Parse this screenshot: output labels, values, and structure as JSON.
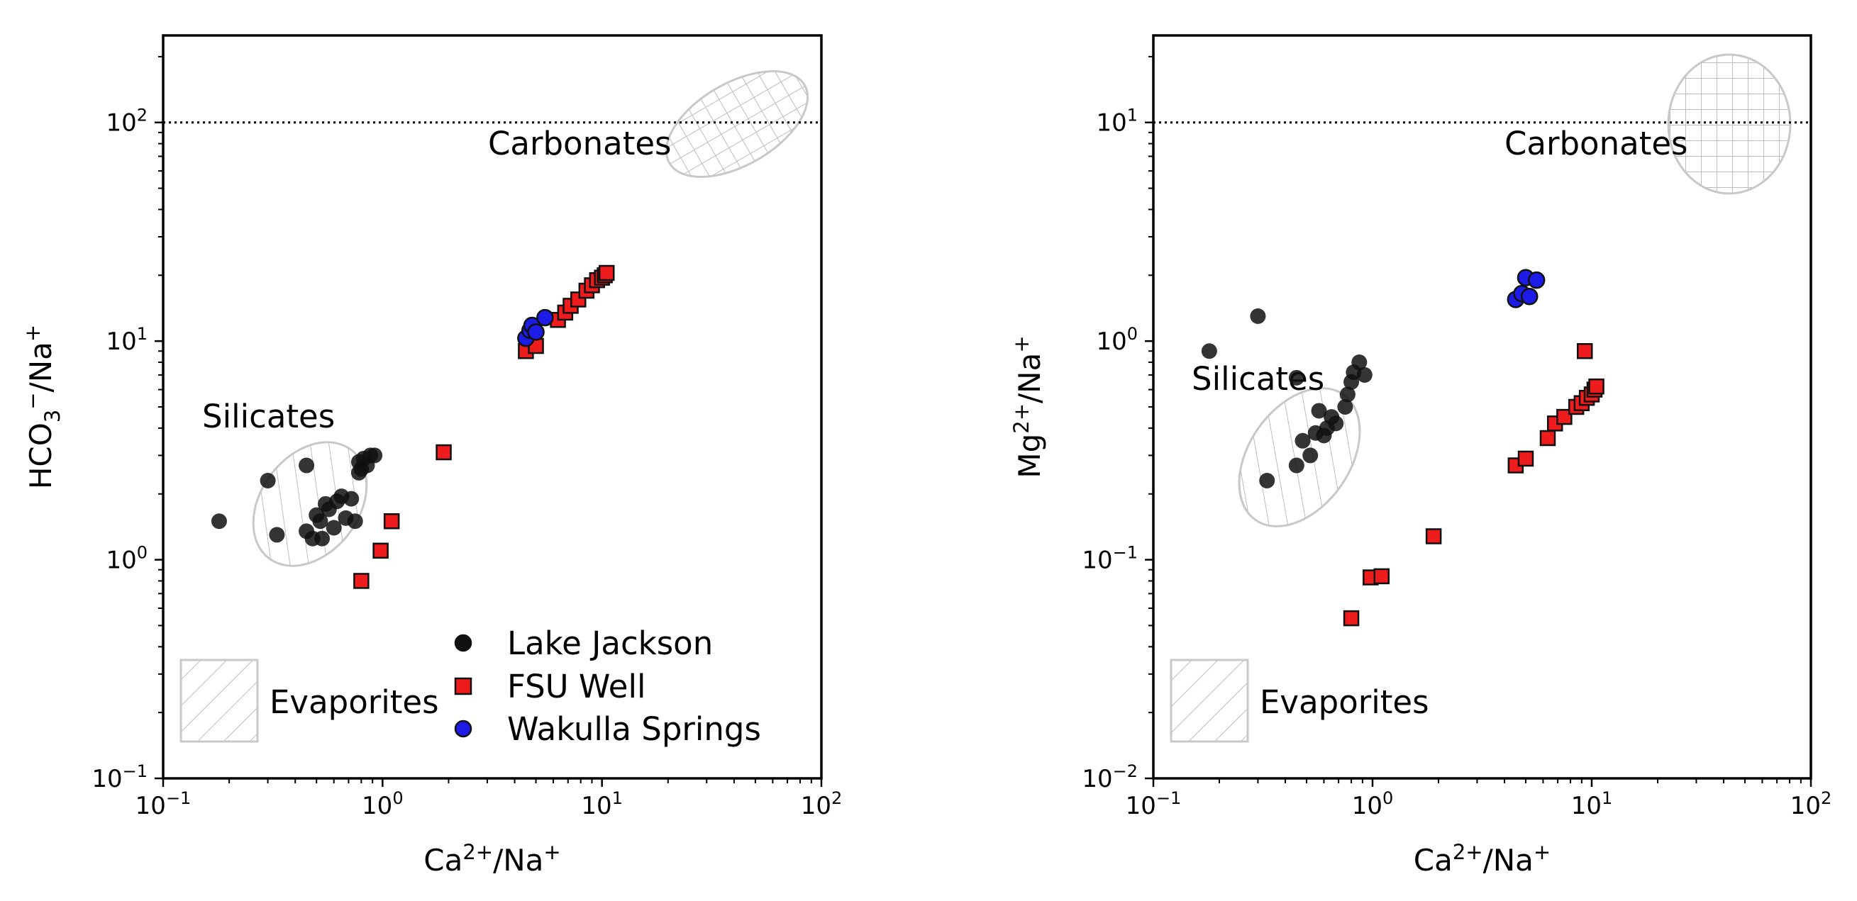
{
  "chart_data": [
    {
      "type": "scatter",
      "xscale": "log",
      "yscale": "log",
      "xlim": [
        0.1,
        100
      ],
      "ylim": [
        0.1,
        250
      ],
      "xticks": [
        0.1,
        1,
        10,
        100
      ],
      "yticks": [
        0.1,
        1,
        10,
        100
      ],
      "xlabel": "Ca2+/Na+",
      "ylabel": "HCO3-/Na+",
      "xlabel_parts": [
        "Ca",
        "2+",
        "/Na",
        "+"
      ],
      "ylabel_parts": [
        "HCO",
        "3",
        "−",
        "/Na",
        "+"
      ],
      "grid": false,
      "reference_line": {
        "y": 100,
        "style": "dotted"
      },
      "regions": [
        {
          "label": "Carbonates",
          "x": 40,
          "y": 80,
          "hatch": "grid"
        },
        {
          "label": "Silicates",
          "x": 0.5,
          "y": 1.6,
          "hatch": "diagonal"
        },
        {
          "label": "Evaporites",
          "x": 0.2,
          "y": 0.28,
          "hatch": "diagonal"
        }
      ],
      "legend": {
        "location": "lower right",
        "entries": [
          "Lake Jackson",
          "FSU Well",
          "Wakulla Springs"
        ]
      },
      "series": [
        {
          "name": "Lake Jackson",
          "marker": "circle",
          "color": "#111111",
          "points": [
            [
              0.18,
              1.5
            ],
            [
              0.3,
              2.3
            ],
            [
              0.33,
              1.3
            ],
            [
              0.45,
              1.35
            ],
            [
              0.45,
              2.7
            ],
            [
              0.48,
              1.25
            ],
            [
              0.5,
              1.6
            ],
            [
              0.52,
              1.5
            ],
            [
              0.53,
              1.25
            ],
            [
              0.55,
              1.8
            ],
            [
              0.57,
              1.7
            ],
            [
              0.6,
              1.4
            ],
            [
              0.62,
              1.85
            ],
            [
              0.65,
              1.95
            ],
            [
              0.68,
              1.55
            ],
            [
              0.72,
              1.9
            ],
            [
              0.75,
              1.5
            ],
            [
              0.78,
              2.8
            ],
            [
              0.8,
              2.6
            ],
            [
              0.85,
              2.7
            ],
            [
              0.88,
              3.0
            ],
            [
              0.92,
              3.0
            ],
            [
              0.78,
              2.5
            ],
            [
              0.82,
              2.9
            ]
          ]
        },
        {
          "name": "FSU Well",
          "marker": "square",
          "color": "#ee1c1c",
          "points": [
            [
              0.8,
              0.8
            ],
            [
              0.98,
              1.1
            ],
            [
              1.1,
              1.5
            ],
            [
              1.9,
              3.1
            ],
            [
              4.5,
              9
            ],
            [
              5.0,
              9.5
            ],
            [
              6.3,
              12.5
            ],
            [
              6.8,
              13.5
            ],
            [
              7.2,
              14.5
            ],
            [
              7.8,
              15.5
            ],
            [
              8.5,
              17
            ],
            [
              9.0,
              18
            ],
            [
              9.5,
              19
            ],
            [
              10.0,
              19.5
            ],
            [
              10.3,
              20
            ],
            [
              10.5,
              20.5
            ]
          ]
        },
        {
          "name": "Wakulla Springs",
          "marker": "circle",
          "color": "#1c1ce6",
          "points": [
            [
              4.5,
              10.3
            ],
            [
              4.7,
              11.2
            ],
            [
              4.8,
              11.8
            ],
            [
              5.0,
              11.0
            ],
            [
              5.5,
              12.8
            ]
          ]
        }
      ]
    },
    {
      "type": "scatter",
      "xscale": "log",
      "yscale": "log",
      "xlim": [
        0.1,
        100
      ],
      "ylim": [
        0.01,
        25
      ],
      "xticks": [
        0.1,
        1,
        10,
        100
      ],
      "yticks": [
        0.01,
        0.1,
        1,
        10
      ],
      "xlabel": "Ca2+/Na+",
      "ylabel": "Mg2+/Na+",
      "xlabel_parts": [
        "Ca",
        "2+",
        "/Na",
        "+"
      ],
      "ylabel_parts": [
        "Mg",
        "2+",
        "/Na",
        "+"
      ],
      "grid": false,
      "reference_line": {
        "y": 10,
        "style": "dotted"
      },
      "regions": [
        {
          "label": "Carbonates",
          "x": 50,
          "y": 8,
          "hatch": "grid"
        },
        {
          "label": "Silicates",
          "x": 0.6,
          "y": 0.35,
          "hatch": "diagonal"
        },
        {
          "label": "Evaporites",
          "x": 0.2,
          "y": 0.028,
          "hatch": "diagonal"
        }
      ],
      "series": [
        {
          "name": "Lake Jackson",
          "marker": "circle",
          "color": "#111111",
          "points": [
            [
              0.18,
              0.9
            ],
            [
              0.3,
              1.3
            ],
            [
              0.33,
              0.23
            ],
            [
              0.45,
              0.27
            ],
            [
              0.45,
              0.68
            ],
            [
              0.48,
              0.35
            ],
            [
              0.52,
              0.3
            ],
            [
              0.55,
              0.38
            ],
            [
              0.57,
              0.48
            ],
            [
              0.6,
              0.37
            ],
            [
              0.62,
              0.4
            ],
            [
              0.65,
              0.45
            ],
            [
              0.68,
              0.42
            ],
            [
              0.75,
              0.5
            ],
            [
              0.77,
              0.57
            ],
            [
              0.8,
              0.65
            ],
            [
              0.82,
              0.72
            ],
            [
              0.87,
              0.8
            ],
            [
              0.92,
              0.7
            ]
          ]
        },
        {
          "name": "FSU Well",
          "marker": "square",
          "color": "#ee1c1c",
          "points": [
            [
              0.8,
              0.054
            ],
            [
              0.98,
              0.083
            ],
            [
              1.1,
              0.084
            ],
            [
              1.9,
              0.128
            ],
            [
              4.5,
              0.27
            ],
            [
              5.0,
              0.29
            ],
            [
              6.3,
              0.36
            ],
            [
              6.8,
              0.42
            ],
            [
              7.5,
              0.45
            ],
            [
              8.5,
              0.5
            ],
            [
              9.0,
              0.52
            ],
            [
              9.5,
              0.55
            ],
            [
              10.0,
              0.57
            ],
            [
              10.3,
              0.6
            ],
            [
              10.5,
              0.62
            ],
            [
              9.3,
              0.9
            ]
          ]
        },
        {
          "name": "Wakulla Springs",
          "marker": "circle",
          "color": "#1c1ce6",
          "points": [
            [
              4.5,
              1.55
            ],
            [
              4.8,
              1.65
            ],
            [
              5.0,
              1.95
            ],
            [
              5.2,
              1.6
            ],
            [
              5.6,
              1.9
            ]
          ]
        }
      ]
    }
  ]
}
